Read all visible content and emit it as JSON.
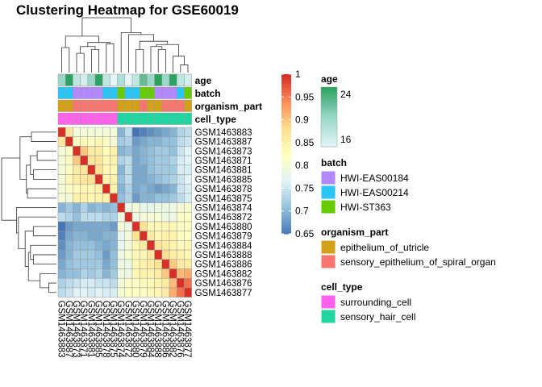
{
  "chart_data": {
    "type": "heatmap",
    "title": "Clustering Heatmap for GSE60019",
    "samples": [
      "GSM1463883",
      "GSM1463887",
      "GSM1463873",
      "GSM1463871",
      "GSM1463881",
      "GSM1463885",
      "GSM1463878",
      "GSM1463875",
      "GSM1463874",
      "GSM1463872",
      "GSM1463880",
      "GSM1463879",
      "GSM1463884",
      "GSM1463888",
      "GSM1463886",
      "GSM1463882",
      "GSM1463876",
      "GSM1463877"
    ],
    "values": [
      [
        1.0,
        0.87,
        0.8,
        0.8,
        0.8,
        0.8,
        0.8,
        0.8,
        0.7,
        0.74,
        0.65,
        0.66,
        0.67,
        0.68,
        0.69,
        0.7,
        0.73,
        0.74
      ],
      [
        0.87,
        1.0,
        0.82,
        0.83,
        0.82,
        0.84,
        0.82,
        0.8,
        0.72,
        0.73,
        0.68,
        0.69,
        0.7,
        0.7,
        0.71,
        0.71,
        0.74,
        0.75
      ],
      [
        0.8,
        0.82,
        1.0,
        0.9,
        0.86,
        0.86,
        0.83,
        0.85,
        0.7,
        0.71,
        0.69,
        0.7,
        0.71,
        0.72,
        0.72,
        0.71,
        0.75,
        0.77
      ],
      [
        0.8,
        0.83,
        0.9,
        1.0,
        0.87,
        0.87,
        0.84,
        0.85,
        0.73,
        0.74,
        0.69,
        0.7,
        0.71,
        0.72,
        0.72,
        0.73,
        0.76,
        0.77
      ],
      [
        0.8,
        0.82,
        0.86,
        0.87,
        1.0,
        0.88,
        0.84,
        0.84,
        0.7,
        0.74,
        0.69,
        0.69,
        0.71,
        0.72,
        0.72,
        0.72,
        0.76,
        0.76
      ],
      [
        0.8,
        0.84,
        0.86,
        0.87,
        0.88,
        1.0,
        0.85,
        0.85,
        0.71,
        0.74,
        0.69,
        0.69,
        0.7,
        0.71,
        0.72,
        0.73,
        0.75,
        0.77
      ],
      [
        0.8,
        0.82,
        0.83,
        0.84,
        0.84,
        0.85,
        1.0,
        0.85,
        0.7,
        0.73,
        0.69,
        0.7,
        0.69,
        0.68,
        0.69,
        0.7,
        0.75,
        0.76
      ],
      [
        0.8,
        0.8,
        0.85,
        0.85,
        0.84,
        0.85,
        0.85,
        1.0,
        0.71,
        0.73,
        0.68,
        0.7,
        0.7,
        0.71,
        0.71,
        0.72,
        0.74,
        0.76
      ],
      [
        0.7,
        0.72,
        0.7,
        0.73,
        0.7,
        0.71,
        0.7,
        0.71,
        1.0,
        0.79,
        0.8,
        0.78,
        0.78,
        0.79,
        0.79,
        0.79,
        0.8,
        0.81
      ],
      [
        0.74,
        0.73,
        0.71,
        0.74,
        0.74,
        0.74,
        0.73,
        0.73,
        0.79,
        1.0,
        0.79,
        0.8,
        0.8,
        0.81,
        0.79,
        0.79,
        0.82,
        0.82
      ],
      [
        0.65,
        0.68,
        0.69,
        0.69,
        0.69,
        0.69,
        0.69,
        0.68,
        0.8,
        0.79,
        1.0,
        0.88,
        0.84,
        0.84,
        0.84,
        0.84,
        0.82,
        0.82
      ],
      [
        0.66,
        0.69,
        0.7,
        0.7,
        0.69,
        0.69,
        0.7,
        0.7,
        0.78,
        0.8,
        0.88,
        1.0,
        0.86,
        0.84,
        0.85,
        0.85,
        0.83,
        0.82
      ],
      [
        0.67,
        0.7,
        0.71,
        0.71,
        0.71,
        0.7,
        0.69,
        0.7,
        0.78,
        0.8,
        0.84,
        0.86,
        1.0,
        0.87,
        0.86,
        0.85,
        0.83,
        0.84
      ],
      [
        0.68,
        0.7,
        0.72,
        0.72,
        0.72,
        0.71,
        0.68,
        0.71,
        0.79,
        0.81,
        0.84,
        0.84,
        0.87,
        1.0,
        0.88,
        0.86,
        0.85,
        0.84
      ],
      [
        0.69,
        0.71,
        0.72,
        0.72,
        0.72,
        0.72,
        0.69,
        0.71,
        0.79,
        0.79,
        0.84,
        0.85,
        0.86,
        0.88,
        1.0,
        0.9,
        0.86,
        0.86
      ],
      [
        0.7,
        0.71,
        0.71,
        0.73,
        0.72,
        0.73,
        0.7,
        0.72,
        0.79,
        0.79,
        0.84,
        0.85,
        0.85,
        0.86,
        0.9,
        1.0,
        0.91,
        0.92
      ],
      [
        0.73,
        0.74,
        0.75,
        0.76,
        0.76,
        0.75,
        0.75,
        0.74,
        0.8,
        0.82,
        0.82,
        0.83,
        0.83,
        0.85,
        0.86,
        0.91,
        1.0,
        0.96
      ],
      [
        0.74,
        0.75,
        0.77,
        0.77,
        0.76,
        0.77,
        0.76,
        0.76,
        0.81,
        0.82,
        0.82,
        0.82,
        0.84,
        0.84,
        0.86,
        0.92,
        0.96,
        1.0
      ]
    ],
    "annotations": {
      "age": [
        20,
        24,
        18,
        17,
        20,
        24,
        18,
        16,
        19,
        16,
        18,
        22,
        20,
        24,
        20,
        24,
        18,
        17
      ],
      "batch": [
        "HWI-EAS00214",
        "HWI-EAS00214",
        "HWI-EAS00184",
        "HWI-EAS00184",
        "HWI-EAS00184",
        "HWI-EAS00184",
        "HWI-EAS00214",
        "HWI-EAS00214",
        "HWI-ST363",
        "HWI-EAS00214",
        "HWI-EAS00214",
        "HWI-ST363",
        "HWI-ST363",
        "HWI-EAS00184",
        "HWI-EAS00184",
        "HWI-EAS00184",
        "HWI-EAS00214",
        "HWI-ST363"
      ],
      "organism_part": [
        "epithelium_of_utricle",
        "epithelium_of_utricle",
        "sensory_epithelium_of_spiral_organ",
        "sensory_epithelium_of_spiral_organ",
        "sensory_epithelium_of_spiral_organ",
        "sensory_epithelium_of_spiral_organ",
        "sensory_epithelium_of_spiral_organ",
        "sensory_epithelium_of_spiral_organ",
        "epithelium_of_utricle",
        "epithelium_of_utricle",
        "epithelium_of_utricle",
        "sensory_epithelium_of_spiral_organ",
        "epithelium_of_utricle",
        "epithelium_of_utricle",
        "sensory_epithelium_of_spiral_organ",
        "sensory_epithelium_of_spiral_organ",
        "sensory_epithelium_of_spiral_organ",
        "epithelium_of_utricle"
      ],
      "cell_type": [
        "surrounding_cell",
        "surrounding_cell",
        "surrounding_cell",
        "surrounding_cell",
        "surrounding_cell",
        "surrounding_cell",
        "surrounding_cell",
        "surrounding_cell",
        "sensory_hair_cell",
        "sensory_hair_cell",
        "sensory_hair_cell",
        "sensory_hair_cell",
        "sensory_hair_cell",
        "sensory_hair_cell",
        "sensory_hair_cell",
        "sensory_hair_cell",
        "sensory_hair_cell",
        "sensory_hair_cell"
      ]
    },
    "annotation_labels": [
      "age",
      "batch",
      "organism_part",
      "cell_type"
    ],
    "color_scale": {
      "min": 0.65,
      "max": 1,
      "ticks": [
        "1",
        "0.95",
        "0.9",
        "0.85",
        "0.8",
        "0.75",
        "0.7",
        "0.65"
      ],
      "tick_values": [
        1,
        0.95,
        0.9,
        0.85,
        0.8,
        0.75,
        0.7,
        0.65
      ],
      "colors": [
        "#4575B4",
        "#91BFDB",
        "#E0F3F8",
        "#FFFFBF",
        "#FEE090",
        "#FC8D59",
        "#D73027"
      ]
    },
    "legend": {
      "age": {
        "title": "age",
        "min": 16,
        "max": 24,
        "ticks": [
          "24",
          "16"
        ],
        "tick_values": [
          24,
          16
        ],
        "colors": [
          "#E5F5F9",
          "#99D8C9",
          "#2CA25F"
        ]
      },
      "batch": {
        "title": "batch",
        "items": [
          {
            "label": "HWI-EAS00184",
            "color": "#B388FF"
          },
          {
            "label": "HWI-EAS00214",
            "color": "#29C5F6"
          },
          {
            "label": "HWI-ST363",
            "color": "#66CC00"
          }
        ]
      },
      "organism_part": {
        "title": "organism_part",
        "items": [
          {
            "label": "epithelium_of_utricle",
            "color": "#D4A017"
          },
          {
            "label": "sensory_epithelium_of_spiral_organ",
            "color": "#F8766D"
          }
        ]
      },
      "cell_type": {
        "title": "cell_type",
        "items": [
          {
            "label": "surrounding_cell",
            "color": "#FF61EB"
          },
          {
            "label": "sensory_hair_cell",
            "color": "#1ED7A0"
          }
        ]
      }
    }
  }
}
